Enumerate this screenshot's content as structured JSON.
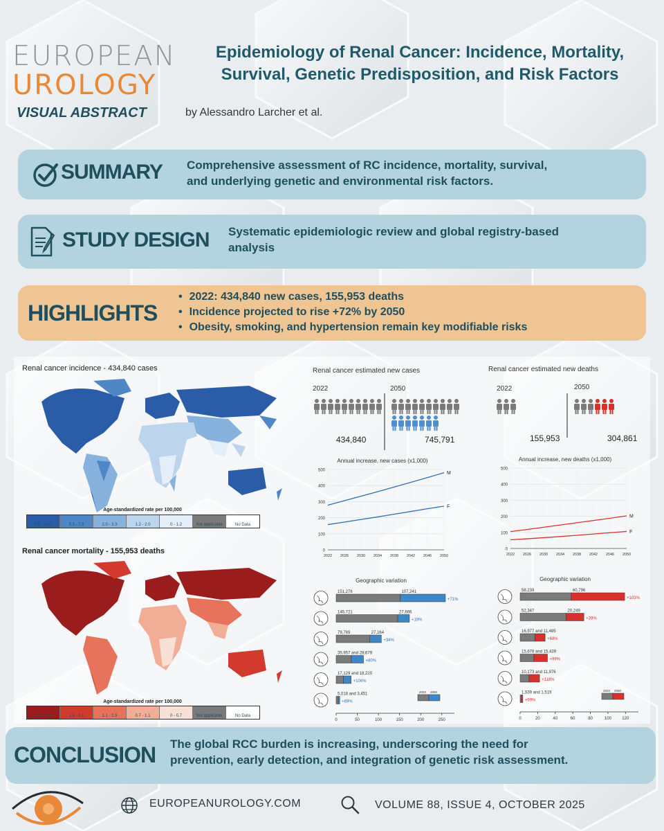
{
  "header": {
    "logo_line1": "EUROPEAN",
    "logo_line2": "UROLOGY",
    "subtitle": "VISUAL ABSTRACT",
    "title_line1": "Epidemiology of Renal Cancer: Incidence, Mortality,",
    "title_line2": "Survival, Genetic Predisposition, and Risk Factors",
    "author": "by Alessandro Larcher et al."
  },
  "summary": {
    "label": "SUMMARY",
    "text_line1": "Comprehensive assessment of RC incidence, mortality, survival,",
    "text_line2": "and underlying genetic and environmental risk factors."
  },
  "study_design": {
    "label": "STUDY DESIGN",
    "text_line1": "Systematic epidemiologic review and global registry-based",
    "text_line2": "analysis"
  },
  "highlights": {
    "label": "HIGHLIGHTS",
    "items": [
      "2022: 434,840 new cases, 155,953 deaths",
      "Incidence projected to rise +72% by 2050",
      "Obesity, smoking, and hypertension remain key modifiable risks"
    ]
  },
  "maps": {
    "incidence_title": "Renal cancer incidence - 434,840 cases",
    "incidence_legend_title": "Age-standardized rate per 100,000",
    "incidence_legend": [
      "7.5 - 14.1",
      "3.3 - 7.5",
      "2.0 - 3.3",
      "1.2 - 2.0",
      "0 - 1.2",
      "Not applicable",
      "No Data"
    ],
    "incidence_colors": [
      "#2b5ca8",
      "#4f87c6",
      "#86b2dd",
      "#bcd5ec",
      "#e4eef8",
      "#7a7a7a",
      "#ffffff"
    ],
    "mortality_title": "Renal cancer mortality - 155,953 deaths",
    "mortality_legend_title": "Age-standardized rate per 100,000",
    "mortality_legend": [
      "2.1 - 4.6",
      "1.5 - 2.1",
      "1.1 - 1.5",
      "0.7 - 1.1",
      "0 - 0.7",
      "Not applicable",
      "No Data"
    ],
    "mortality_colors": [
      "#9b1c1c",
      "#d23a2e",
      "#e8735c",
      "#f2ad96",
      "#f8e0d6",
      "#7a7a7a",
      "#ffffff"
    ]
  },
  "chart_data": [
    {
      "type": "pictogram",
      "title": "Renal cancer estimated new cases",
      "categories": [
        "2022",
        "2050"
      ],
      "values": [
        434840,
        745791
      ],
      "labels": [
        "434,840",
        "745,791"
      ]
    },
    {
      "type": "pictogram",
      "title": "Renal cancer estimated new deaths",
      "categories": [
        "2022",
        "2050"
      ],
      "values": [
        155953,
        304861
      ],
      "labels": [
        "155,953",
        "304,861"
      ]
    },
    {
      "type": "line",
      "title": "Annual increase, new cases (x1,000)",
      "x": [
        2022,
        2026,
        2030,
        2034,
        2038,
        2042,
        2046,
        2050
      ],
      "x_labels": [
        "2022",
        "2026",
        "2030",
        "2034",
        "2038",
        "2042",
        "2046",
        "2050"
      ],
      "ylim": [
        0,
        500
      ],
      "y_ticks": [
        0,
        100,
        200,
        300,
        400,
        500
      ],
      "series": [
        {
          "name": "M",
          "values": [
            278,
            306,
            334,
            362,
            391,
            420,
            450,
            480
          ]
        },
        {
          "name": "F",
          "values": [
            157,
            173,
            189,
            205,
            222,
            239,
            256,
            272
          ]
        }
      ]
    },
    {
      "type": "line",
      "title": "Annual increase, new deaths (x1,000)",
      "x": [
        2022,
        2026,
        2030,
        2034,
        2038,
        2042,
        2046,
        2050
      ],
      "x_labels": [
        "2022",
        "2026",
        "2030",
        "2034",
        "2038",
        "2042",
        "2046",
        "2050"
      ],
      "ylim": [
        0,
        500
      ],
      "y_ticks": [
        0,
        100,
        200,
        300,
        400,
        500
      ],
      "series": [
        {
          "name": "M",
          "values": [
            105,
            118,
            132,
            146,
            160,
            174,
            188,
            203
          ]
        },
        {
          "name": "F",
          "values": [
            54,
            60,
            67,
            74,
            82,
            90,
            98,
            106
          ]
        }
      ]
    },
    {
      "type": "bar",
      "title": "Geographic variation",
      "categories": [
        "r1",
        "r2",
        "r3",
        "r4",
        "r5",
        "r6"
      ],
      "base_values": [
        151.276,
        145.721,
        79.769,
        35.957,
        17.129,
        5.018
      ],
      "increase_values": [
        107.241,
        27.666,
        27.164,
        28.679,
        18.22,
        3.451
      ],
      "value_labels": [
        "151,276",
        "145,721",
        "79,769",
        "35,957 and 28,679",
        "17,129 and 18,220",
        "5,018 and 3,451"
      ],
      "extra_labels": [
        "107,241",
        "27,666",
        "27,164",
        "",
        "",
        ""
      ],
      "pct_labels": [
        "+71%",
        "+19%",
        "+34%",
        "+80%",
        "+106%",
        "+69%"
      ],
      "x_ticks": [
        0,
        50,
        100,
        150,
        200,
        250
      ],
      "xlim": [
        0,
        270
      ],
      "legend": [
        "2022",
        "2050"
      ],
      "colors": {
        "base": "#7a7a7a",
        "increase": "#3f86c8",
        "pct": "#2f74b6"
      }
    },
    {
      "type": "bar",
      "title": "Geographic variation",
      "categories": [
        "r1",
        "r2",
        "r3",
        "r4",
        "r5",
        "r6"
      ],
      "base_values": [
        58.239,
        52.347,
        16.977,
        15.678,
        10.173,
        1.539
      ],
      "increase_values": [
        60.796,
        20.249,
        11.485,
        15.439,
        11.976,
        1.519
      ],
      "value_labels": [
        "58,239",
        "52,347",
        "16,977 and 11,485",
        "15,678 and 15,439",
        "10,173 and 11,976",
        "1,539 and 1,519"
      ],
      "extra_labels": [
        "60,796",
        "20,249",
        "",
        "",
        "",
        ""
      ],
      "pct_labels": [
        "+103%",
        "+39%",
        "+68%",
        "+99%",
        "+118%",
        "+99%"
      ],
      "x_ticks": [
        0,
        20,
        40,
        60,
        80,
        100,
        120
      ],
      "xlim": [
        0,
        130
      ],
      "legend": [
        "2022",
        "2050"
      ],
      "colors": {
        "base": "#7a7a7a",
        "increase": "#d8312b",
        "pct": "#d8312b"
      }
    }
  ],
  "conclusion": {
    "label": "CONCLUSION",
    "text_line1": "The global RCC burden is increasing, underscoring the need for",
    "text_line2": "prevention, early detection, and integration of genetic risk assessment."
  },
  "footer": {
    "website": "EUROPEANUROLOGY.COM",
    "volume": "VOLUME 88, ISSUE 4, OCTOBER 2025"
  },
  "colors": {
    "panel_blue": "#b3d3de",
    "panel_orange": "#f0c594",
    "text_dark": "#1f4e5c",
    "brand_orange": "#e8893a"
  }
}
